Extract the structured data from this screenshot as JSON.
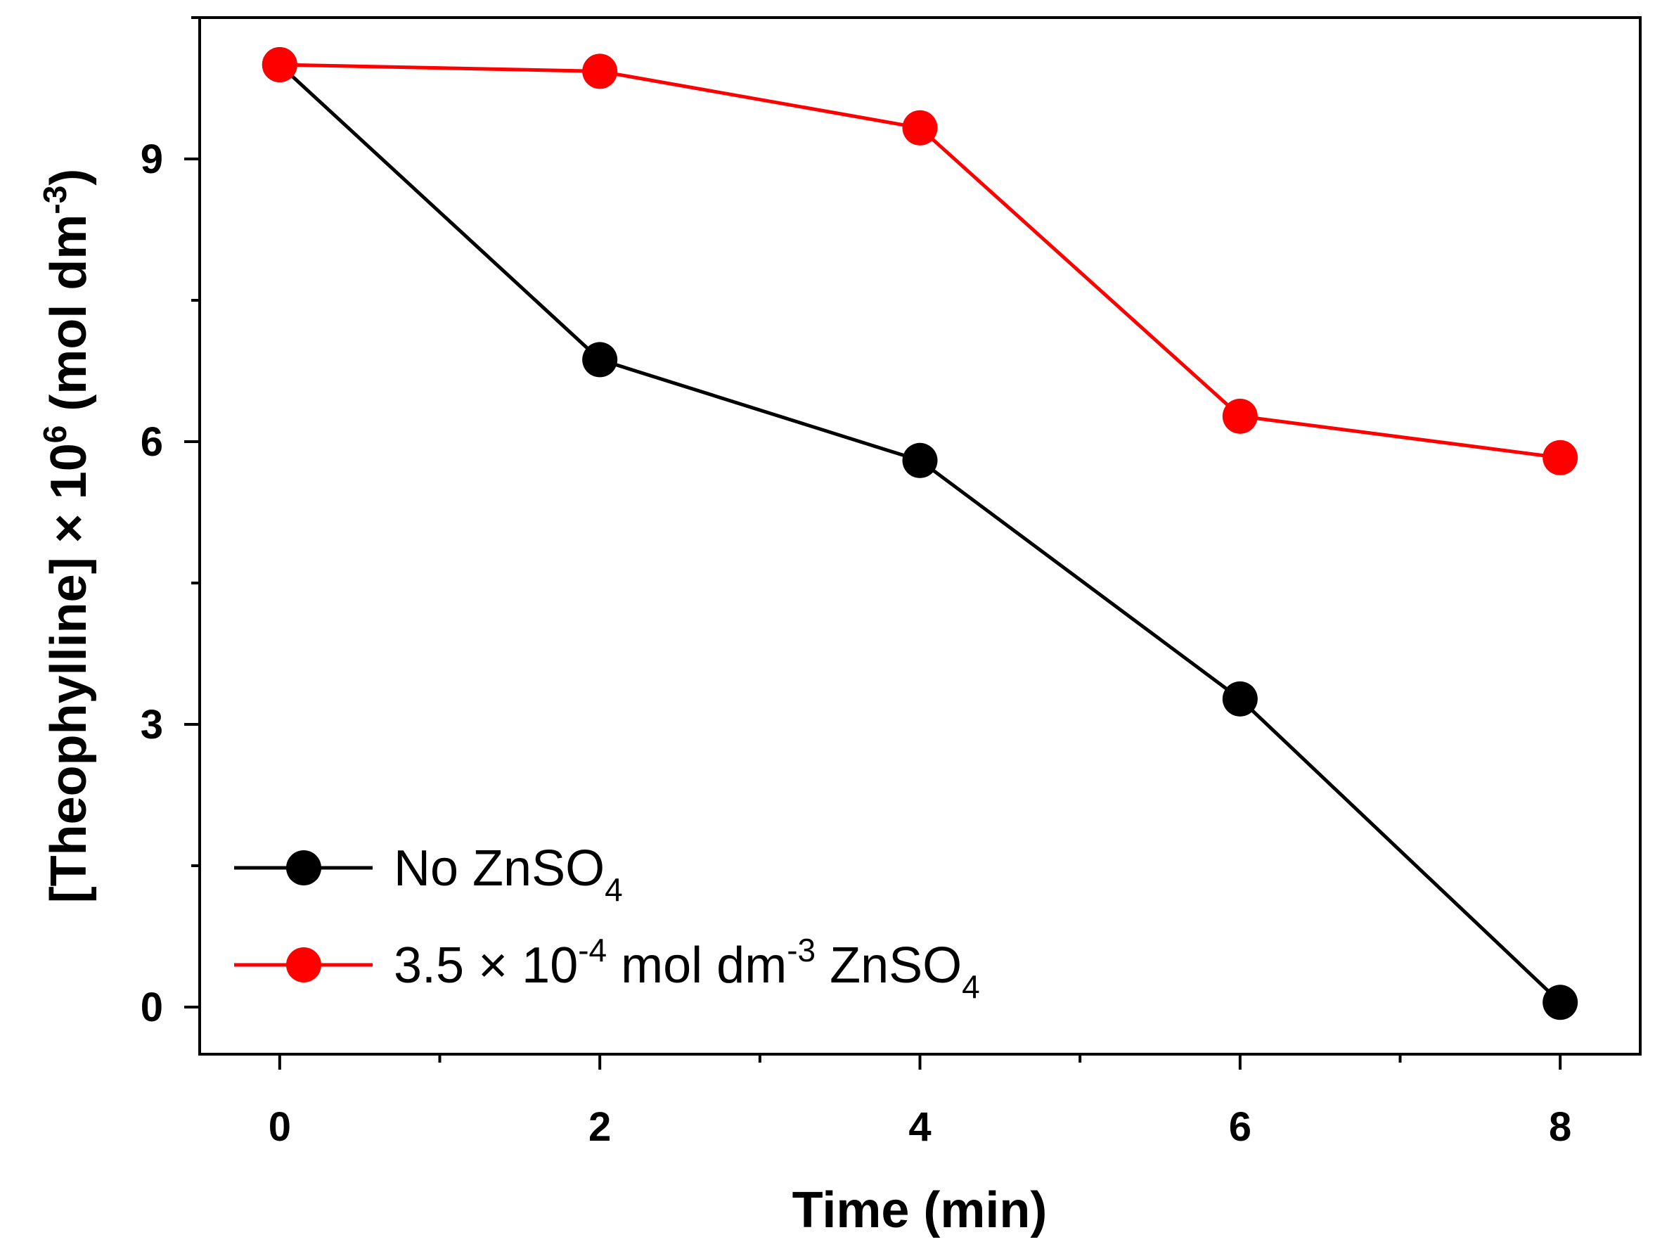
{
  "chart_data": {
    "type": "line",
    "title": "",
    "xlabel": "Time (min)",
    "ylabel": {
      "main": "[Theophylline] × 10",
      "exponent": "6",
      "unit_open": " (mol dm",
      "unit_exponent": "-3",
      "unit_close": ")"
    },
    "x": [
      0,
      2,
      4,
      6,
      8
    ],
    "xlim": [
      -0.5,
      8.5
    ],
    "ylim": [
      -0.5,
      10.5
    ],
    "xticks": [
      0,
      2,
      4,
      6,
      8
    ],
    "yticks": [
      0,
      3,
      6,
      9
    ],
    "x_minor_step": 1,
    "y_minor_step": 1.5,
    "grid": false,
    "legend_position": "bottom-left",
    "series": [
      {
        "name": "No ZnSO4",
        "label_parts": [
          {
            "text": "No ZnSO",
            "style": "normal"
          },
          {
            "text": "4",
            "style": "sub"
          }
        ],
        "color": "#000000",
        "values": [
          10.0,
          6.87,
          5.8,
          3.27,
          0.05
        ]
      },
      {
        "name": "3.5 × 10-4 mol dm-3 ZnSO4",
        "label_parts": [
          {
            "text": "3.5 × 10",
            "style": "normal"
          },
          {
            "text": "-4",
            "style": "sup"
          },
          {
            "text": " mol dm",
            "style": "normal"
          },
          {
            "text": "-3",
            "style": "sup"
          },
          {
            "text": " ZnSO",
            "style": "normal"
          },
          {
            "text": "4",
            "style": "sub"
          }
        ],
        "color": "#ff0000",
        "values": [
          10.0,
          9.93,
          9.33,
          6.27,
          5.83
        ]
      }
    ]
  }
}
